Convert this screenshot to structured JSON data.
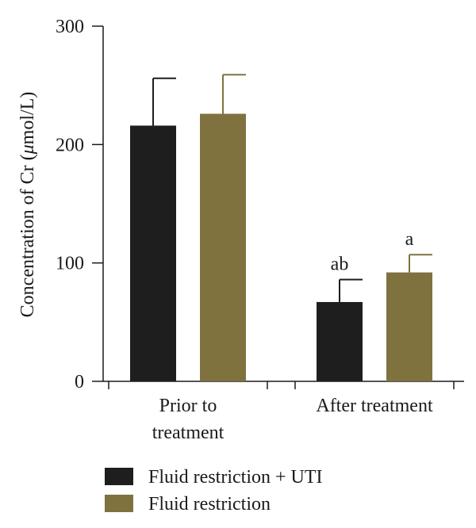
{
  "chart_data": {
    "type": "bar",
    "ylabel_prefix": "Concentration of Cr (",
    "ylabel_mu": "μ",
    "ylabel_suffix": "mol/L)",
    "ylim": [
      0,
      300
    ],
    "yticks": [
      0,
      100,
      200,
      300
    ],
    "categories": [
      [
        "Prior to",
        "treatment"
      ],
      [
        "After treatment"
      ]
    ],
    "series": [
      {
        "name": "Fluid restriction + UTI",
        "color": "#1e1e1e",
        "values": [
          216,
          67
        ],
        "errors": [
          40,
          19
        ],
        "annotations": [
          "",
          "ab"
        ]
      },
      {
        "name": "Fluid restriction",
        "color": "#80723f",
        "values": [
          226,
          92
        ],
        "errors": [
          33,
          15
        ],
        "annotations": [
          "",
          "a"
        ]
      }
    ],
    "legend_position": "bottom-left"
  }
}
